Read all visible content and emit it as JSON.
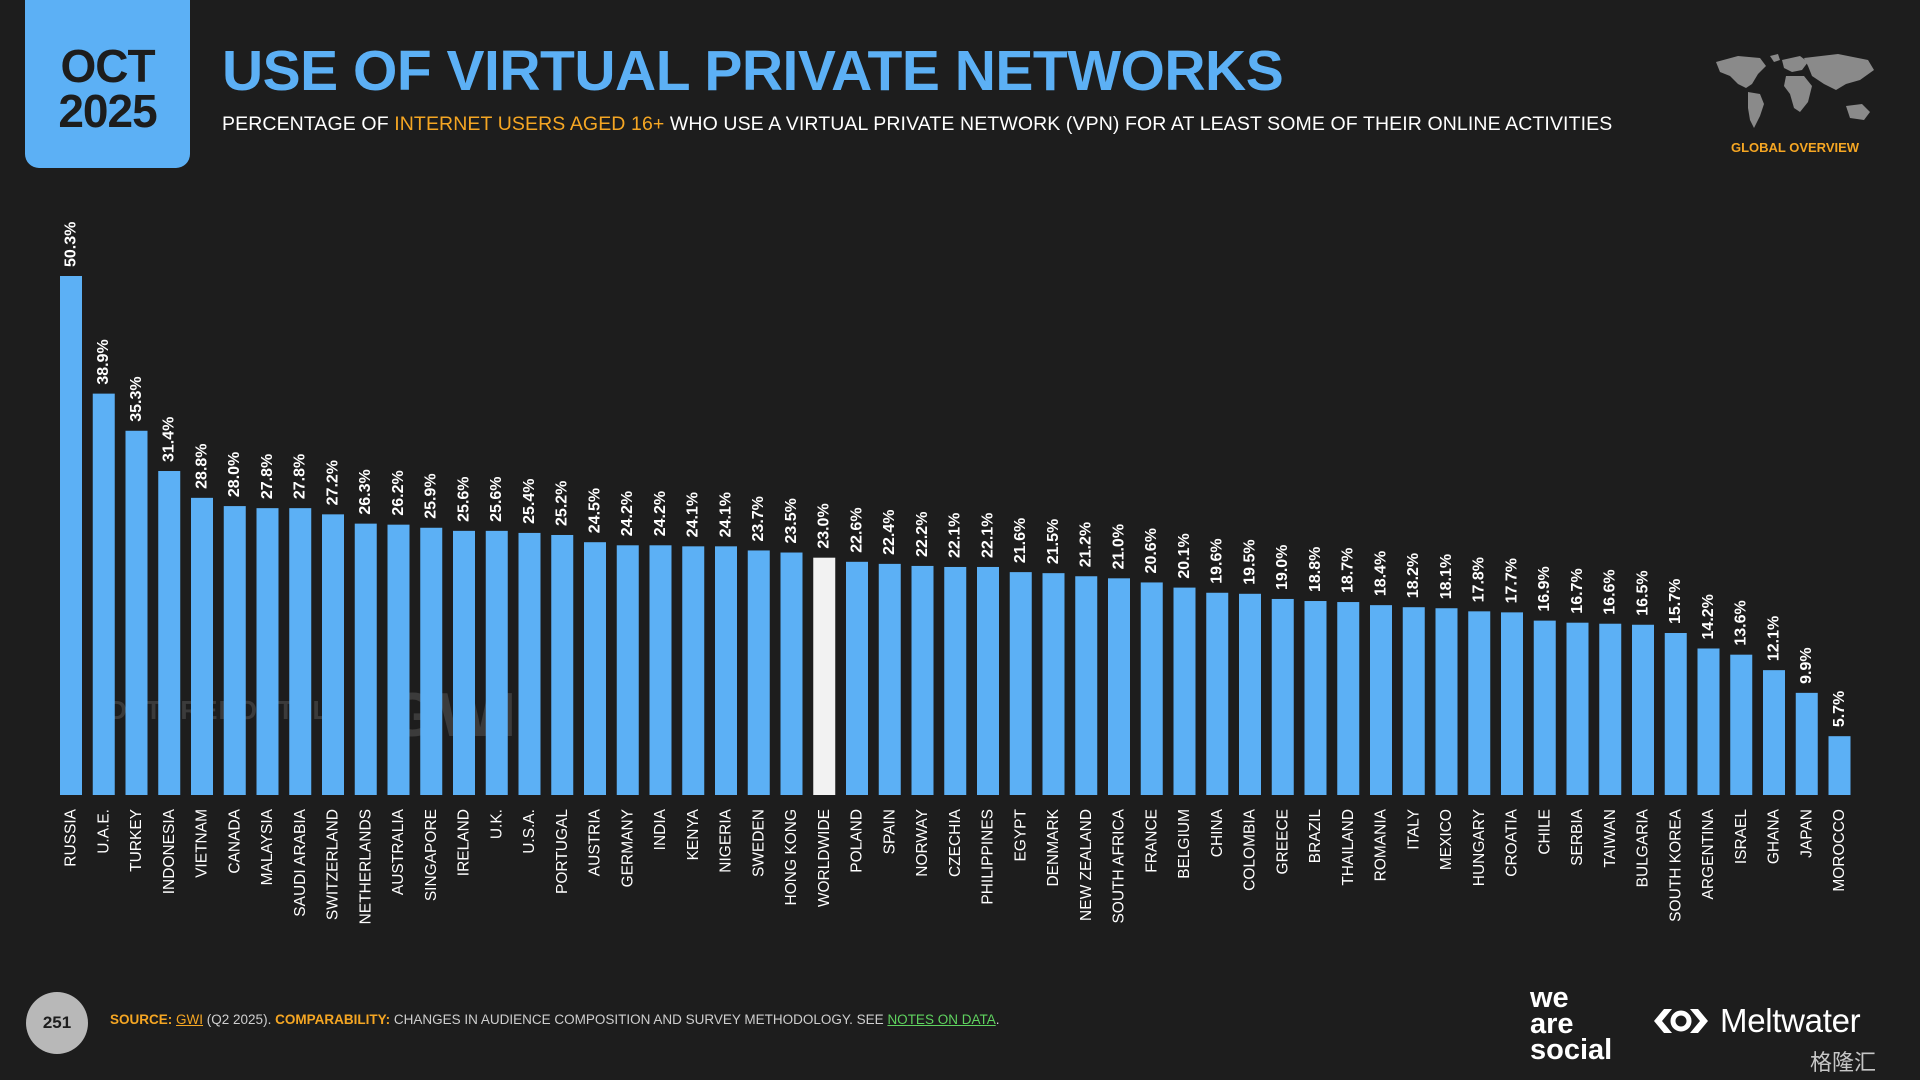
{
  "header": {
    "month": "OCT",
    "year": "2025",
    "title": "USE OF VIRTUAL PRIVATE NETWORKS",
    "subtitle_pre": "PERCENTAGE OF ",
    "subtitle_highlight": "INTERNET USERS AGED 16+",
    "subtitle_post": " WHO USE A VIRTUAL PRIVATE NETWORK (VPN) FOR AT LEAST SOME OF THEIR ONLINE ACTIVITIES",
    "section_label": "GLOBAL OVERVIEW"
  },
  "watermarks": {
    "datareportal": "DATAREPORTAL",
    "gwi": "GWI."
  },
  "colors": {
    "bar": "#5cb0f5",
    "highlight_bar": "#f2f2f2",
    "accent": "#f5a623",
    "background": "#1d1d1d"
  },
  "chart_data": {
    "type": "bar",
    "title": "",
    "xlabel": "",
    "ylabel": "",
    "ylim": [
      0,
      50.3
    ],
    "highlight_category": "WORLDWIDE",
    "value_suffix": "%",
    "categories": [
      "RUSSIA",
      "U.A.E.",
      "TURKEY",
      "INDONESIA",
      "VIETNAM",
      "CANADA",
      "MALAYSIA",
      "SAUDI ARABIA",
      "SWITZERLAND",
      "NETHERLANDS",
      "AUSTRALIA",
      "SINGAPORE",
      "IRELAND",
      "U.K.",
      "U.S.A.",
      "PORTUGAL",
      "AUSTRIA",
      "GERMANY",
      "INDIA",
      "KENYA",
      "NIGERIA",
      "SWEDEN",
      "HONG KONG",
      "WORLDWIDE",
      "POLAND",
      "SPAIN",
      "NORWAY",
      "CZECHIA",
      "PHILIPPINES",
      "EGYPT",
      "DENMARK",
      "NEW ZEALAND",
      "SOUTH AFRICA",
      "FRANCE",
      "BELGIUM",
      "CHINA",
      "COLOMBIA",
      "GREECE",
      "BRAZIL",
      "THAILAND",
      "ROMANIA",
      "ITALY",
      "MEXICO",
      "HUNGARY",
      "CROATIA",
      "CHILE",
      "SERBIA",
      "TAIWAN",
      "BULGARIA",
      "SOUTH KOREA",
      "ARGENTINA",
      "ISRAEL",
      "GHANA",
      "JAPAN",
      "MOROCCO"
    ],
    "values": [
      50.3,
      38.9,
      35.3,
      31.4,
      28.8,
      28.0,
      27.8,
      27.8,
      27.2,
      26.3,
      26.2,
      25.9,
      25.6,
      25.6,
      25.4,
      25.2,
      24.5,
      24.2,
      24.2,
      24.1,
      24.1,
      23.7,
      23.5,
      23.0,
      22.6,
      22.4,
      22.2,
      22.1,
      22.1,
      21.6,
      21.5,
      21.2,
      21.0,
      20.6,
      20.1,
      19.6,
      19.5,
      19.0,
      18.8,
      18.7,
      18.4,
      18.2,
      18.1,
      17.8,
      17.7,
      16.9,
      16.7,
      16.6,
      16.5,
      15.7,
      14.2,
      13.6,
      12.1,
      9.9,
      5.7
    ],
    "value_labels": [
      "50.3%",
      "38.9%",
      "35.3%",
      "31.4%",
      "28.8%",
      "28.0%",
      "27.8%",
      "27.8%",
      "27.2%",
      "26.3%",
      "26.2%",
      "25.9%",
      "25.6%",
      "25.6%",
      "25.4%",
      "25.2%",
      "24.5%",
      "24.2%",
      "24.2%",
      "24.1%",
      "24.1%",
      "23.7%",
      "23.5%",
      "23.0%",
      "22.6%",
      "22.4%",
      "22.2%",
      "22.1%",
      "22.1%",
      "21.6%",
      "21.5%",
      "21.2%",
      "21.0%",
      "20.6%",
      "20.1%",
      "19.6%",
      "19.5%",
      "19.0%",
      "18.8%",
      "18.7%",
      "18.4%",
      "18.2%",
      "18.1%",
      "17.8%",
      "17.7%",
      "16.9%",
      "16.7%",
      "16.6%",
      "16.5%",
      "15.7%",
      "14.2%",
      "13.6%",
      "12.1%",
      "9.9%",
      "5.7%"
    ],
    "grid": false,
    "legend": "none"
  },
  "footer": {
    "page_number": "251",
    "source_label": "SOURCE:",
    "source_link": "GWI",
    "source_detail": " (Q2 2025). ",
    "comparability_label": "COMPARABILITY:",
    "comparability_text": " CHANGES IN AUDIENCE COMPOSITION AND SURVEY METHODOLOGY. SEE ",
    "notes_link": "NOTES ON DATA",
    "notes_end": "."
  },
  "branding": {
    "we": "we",
    "are": "are",
    "social": "social",
    "meltwater": "Meltwater",
    "corner_mark": "格隆汇"
  }
}
